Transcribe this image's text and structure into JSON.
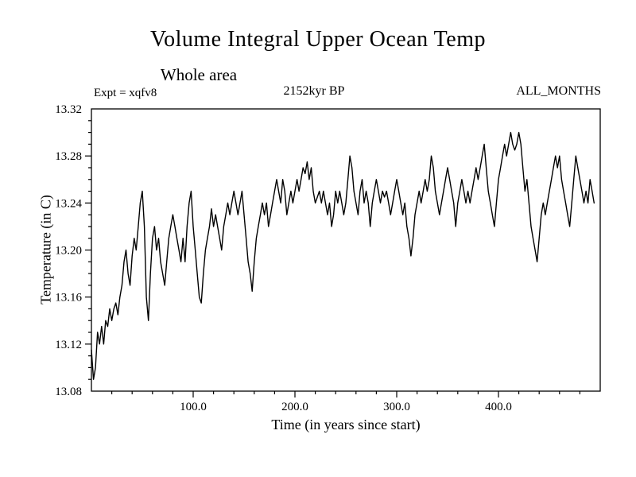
{
  "header": {
    "title": "Volume Integral Upper Ocean Temp",
    "subtitle": "Whole area",
    "expt_label": "Expt = xqfv8",
    "kyr_label": "2152kyr BP",
    "months_label": "ALL_MONTHS"
  },
  "chart_data": {
    "type": "line",
    "title": "Volume Integral Upper Ocean Temp",
    "subtitle": "Whole area",
    "annotations": {
      "left": "Expt = xqfv8",
      "center": "2152kyr BP",
      "right": "ALL_MONTHS"
    },
    "xlabel": "Time (in years since start)",
    "ylabel": "Temperature (in C)",
    "xlim": [
      0,
      500
    ],
    "ylim": [
      13.08,
      13.32
    ],
    "grid": false,
    "legend": "none",
    "line_color": "#000000",
    "x_ticks": [
      100,
      200,
      300,
      400
    ],
    "x_tick_labels": [
      "100.0",
      "200.0",
      "300.0",
      "400.0"
    ],
    "x_minor_step": 20,
    "y_ticks": [
      13.08,
      13.12,
      13.16,
      13.2,
      13.24,
      13.28,
      13.32
    ],
    "y_tick_labels": [
      "13.08",
      "13.12",
      "13.16",
      "13.20",
      "13.24",
      "13.28",
      "13.32"
    ],
    "y_minor_step": 0.01,
    "series": [
      {
        "name": "upper-ocean-temp",
        "x_start": 0,
        "x_step": 2,
        "values": [
          13.115,
          13.09,
          13.1,
          13.13,
          13.12,
          13.135,
          13.12,
          13.14,
          13.135,
          13.15,
          13.14,
          13.15,
          13.155,
          13.145,
          13.16,
          13.17,
          13.19,
          13.2,
          13.18,
          13.17,
          13.195,
          13.21,
          13.2,
          13.22,
          13.24,
          13.25,
          13.22,
          13.16,
          13.14,
          13.18,
          13.21,
          13.22,
          13.2,
          13.21,
          13.19,
          13.18,
          13.17,
          13.19,
          13.21,
          13.22,
          13.23,
          13.22,
          13.21,
          13.2,
          13.19,
          13.21,
          13.19,
          13.22,
          13.24,
          13.25,
          13.22,
          13.2,
          13.18,
          13.16,
          13.155,
          13.18,
          13.2,
          13.21,
          13.22,
          13.235,
          13.22,
          13.23,
          13.22,
          13.21,
          13.2,
          13.22,
          13.23,
          13.24,
          13.23,
          13.24,
          13.25,
          13.24,
          13.23,
          13.24,
          13.25,
          13.23,
          13.21,
          13.19,
          13.18,
          13.165,
          13.19,
          13.21,
          13.22,
          13.23,
          13.24,
          13.23,
          13.24,
          13.22,
          13.23,
          13.24,
          13.25,
          13.26,
          13.25,
          13.24,
          13.26,
          13.25,
          13.23,
          13.24,
          13.25,
          13.24,
          13.25,
          13.26,
          13.25,
          13.26,
          13.27,
          13.265,
          13.275,
          13.26,
          13.27,
          13.25,
          13.24,
          13.245,
          13.25,
          13.24,
          13.25,
          13.24,
          13.23,
          13.24,
          13.22,
          13.23,
          13.25,
          13.24,
          13.25,
          13.24,
          13.23,
          13.24,
          13.26,
          13.28,
          13.27,
          13.25,
          13.24,
          13.23,
          13.25,
          13.26,
          13.24,
          13.25,
          13.24,
          13.22,
          13.24,
          13.25,
          13.26,
          13.25,
          13.24,
          13.25,
          13.245,
          13.25,
          13.24,
          13.23,
          13.24,
          13.25,
          13.26,
          13.25,
          13.24,
          13.23,
          13.24,
          13.22,
          13.21,
          13.195,
          13.21,
          13.23,
          13.24,
          13.25,
          13.24,
          13.25,
          13.26,
          13.25,
          13.26,
          13.28,
          13.27,
          13.25,
          13.24,
          13.23,
          13.24,
          13.25,
          13.26,
          13.27,
          13.26,
          13.25,
          13.24,
          13.22,
          13.24,
          13.25,
          13.26,
          13.25,
          13.24,
          13.25,
          13.24,
          13.25,
          13.26,
          13.27,
          13.26,
          13.27,
          13.28,
          13.29,
          13.27,
          13.25,
          13.24,
          13.23,
          13.22,
          13.24,
          13.26,
          13.27,
          13.28,
          13.29,
          13.28,
          13.29,
          13.3,
          13.29,
          13.285,
          13.29,
          13.3,
          13.29,
          13.27,
          13.25,
          13.26,
          13.24,
          13.22,
          13.21,
          13.2,
          13.19,
          13.21,
          13.23,
          13.24,
          13.23,
          13.24,
          13.25,
          13.26,
          13.27,
          13.28,
          13.27,
          13.28,
          13.26,
          13.25,
          13.24,
          13.23,
          13.22,
          13.24,
          13.26,
          13.28,
          13.27,
          13.26,
          13.25,
          13.24,
          13.25,
          13.24,
          13.26,
          13.25,
          13.24
        ]
      }
    ]
  }
}
